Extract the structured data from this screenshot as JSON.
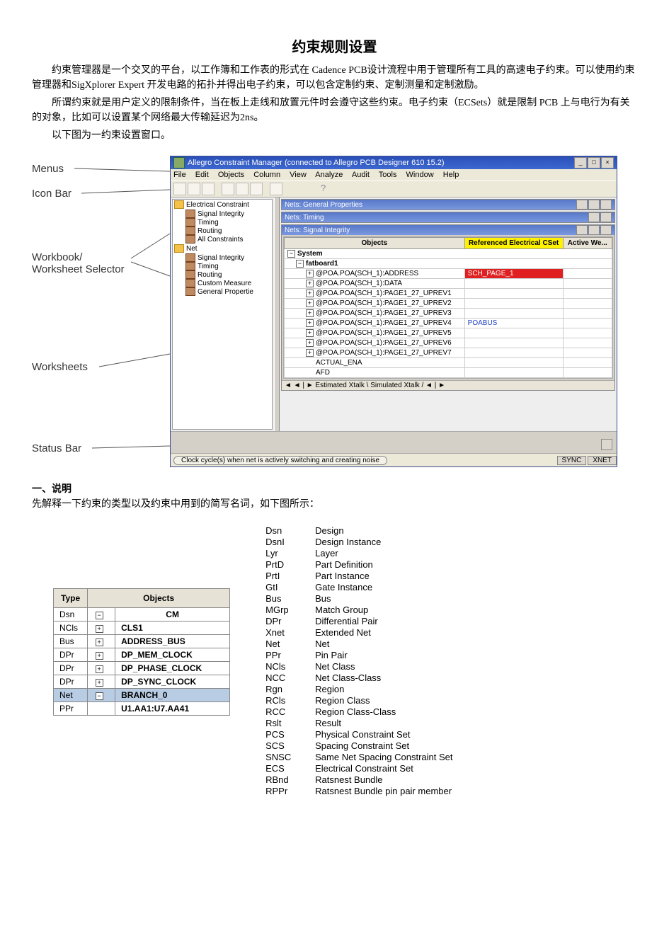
{
  "title": "约束规则设置",
  "para1": "约束管理器是一个交叉的平台，以工作簿和工作表的形式在 Cadence PCB设计流程中用于管理所有工具的高速电子约束。可以使用约束管理器和SigXplorer Expert 开发电路的拓扑并得出电子约束，可以包含定制约束、定制测量和定制激励。",
  "para2": "所谓约束就是用户定义的限制条件，当在板上走线和放置元件时会遵守这些约束。电子约束（ECSets）就是限制 PCB 上与电行为有关的对象，比如可以设置某个网络最大传输延迟为2ns。",
  "para3": "以下图为一约束设置窗口。",
  "callouts": {
    "menus": "Menus",
    "iconbar": "Icon Bar",
    "workbook": "Workbook/\nWorksheet Selector",
    "worksheets": "Worksheets",
    "statusbar": "Status Bar"
  },
  "app": {
    "title": "Allegro Constraint Manager (connected to Allegro PCB Designer 610 15.2)",
    "menus": [
      "File",
      "Edit",
      "Objects",
      "Column",
      "View",
      "Analyze",
      "Audit",
      "Tools",
      "Window",
      "Help"
    ],
    "tree": {
      "ec_folder": "Electrical Constraint",
      "ec_items": [
        "Signal Integrity",
        "Timing",
        "Routing",
        "All Constraints"
      ],
      "net_folder": "Net",
      "net_items": [
        "Signal Integrity",
        "Timing",
        "Routing",
        "Custom Measure",
        "General Propertie"
      ]
    },
    "panel_titles": {
      "p1": "Nets: General Properties",
      "p2": "Nets: Timing",
      "p3": "Nets: Signal Integrity"
    },
    "sheet": {
      "headers": [
        "Objects",
        "Referenced Electrical CSet",
        "Active We..."
      ],
      "system": "System",
      "board": "fatboard1",
      "rows": [
        {
          "name": "@POA.POA(SCH_1):ADDRESS",
          "cset": "SCH_PAGE_1"
        },
        {
          "name": "@POA.POA(SCH_1):DATA",
          "cset": ""
        },
        {
          "name": "@POA.POA(SCH_1):PAGE1_27_UPREV1",
          "cset": ""
        },
        {
          "name": "@POA.POA(SCH_1):PAGE1_27_UPREV2",
          "cset": ""
        },
        {
          "name": "@POA.POA(SCH_1):PAGE1_27_UPREV3",
          "cset": ""
        },
        {
          "name": "@POA.POA(SCH_1):PAGE1_27_UPREV4",
          "cset": "POABUS"
        },
        {
          "name": "@POA.POA(SCH_1):PAGE1_27_UPREV5",
          "cset": ""
        },
        {
          "name": "@POA.POA(SCH_1):PAGE1_27_UPREV6",
          "cset": ""
        },
        {
          "name": "@POA.POA(SCH_1):PAGE1_27_UPREV7",
          "cset": ""
        },
        {
          "name": "ACTUAL_ENA",
          "cset": ""
        },
        {
          "name": "AFD",
          "cset": ""
        }
      ],
      "tabs": "◄ ◄ | ► Estimated Xtalk  \\ Simulated Xtalk / ◄ | ►"
    },
    "status_text": "Clock cycle(s) when net is actively switching and creating noise",
    "status_right": [
      "SYNC",
      "XNET"
    ]
  },
  "section1_head": "一、说明",
  "section1_text": "先解释一下约束的类型以及约束中用到的简写名词，如下图所示：",
  "typetable": {
    "headers": [
      "Type",
      "Objects"
    ],
    "rows": [
      {
        "t": "Dsn",
        "exp": "−",
        "o": "CM",
        "sel": false,
        "center": true
      },
      {
        "t": "NCls",
        "exp": "+",
        "o": "CLS1"
      },
      {
        "t": "Bus",
        "exp": "+",
        "o": "ADDRESS_BUS"
      },
      {
        "t": "DPr",
        "exp": "+",
        "o": "DP_MEM_CLOCK"
      },
      {
        "t": "DPr",
        "exp": "+",
        "o": "DP_PHASE_CLOCK"
      },
      {
        "t": "DPr",
        "exp": "+",
        "o": "DP_SYNC_CLOCK"
      },
      {
        "t": "Net",
        "exp": "−",
        "o": "BRANCH_0",
        "sel": true
      },
      {
        "t": "PPr",
        "exp": "",
        "o": "U1.AA1:U7.AA41"
      }
    ]
  },
  "defs": [
    {
      "a": "Dsn",
      "d": "Design"
    },
    {
      "a": "DsnI",
      "d": "Design Instance"
    },
    {
      "a": "Lyr",
      "d": "Layer"
    },
    {
      "a": "PrtD",
      "d": "Part Definition"
    },
    {
      "a": "PrtI",
      "d": "Part Instance"
    },
    {
      "a": "GtI",
      "d": "Gate Instance"
    },
    {
      "a": "Bus",
      "d": "Bus"
    },
    {
      "a": "MGrp",
      "d": "Match Group"
    },
    {
      "a": "DPr",
      "d": "Differential Pair"
    },
    {
      "a": "Xnet",
      "d": "Extended Net"
    },
    {
      "a": "Net",
      "d": "Net"
    },
    {
      "a": "PPr",
      "d": "Pin Pair"
    },
    {
      "a": "NCls",
      "d": "Net Class"
    },
    {
      "a": "NCC",
      "d": "Net Class-Class"
    },
    {
      "a": "Rgn",
      "d": "Region"
    },
    {
      "a": "RCls",
      "d": "Region Class"
    },
    {
      "a": "RCC",
      "d": "Region Class-Class"
    },
    {
      "a": "Rslt",
      "d": "Result"
    },
    {
      "a": "PCS",
      "d": "Physical Constraint Set"
    },
    {
      "a": "SCS",
      "d": "Spacing Constraint Set"
    },
    {
      "a": "SNSC",
      "d": "Same Net Spacing Constraint Set"
    },
    {
      "a": "ECS",
      "d": "Electrical Constraint Set"
    },
    {
      "a": "RBnd",
      "d": "Ratsnest Bundle"
    },
    {
      "a": "RPPr",
      "d": "Ratsnest Bundle pin pair member"
    }
  ]
}
